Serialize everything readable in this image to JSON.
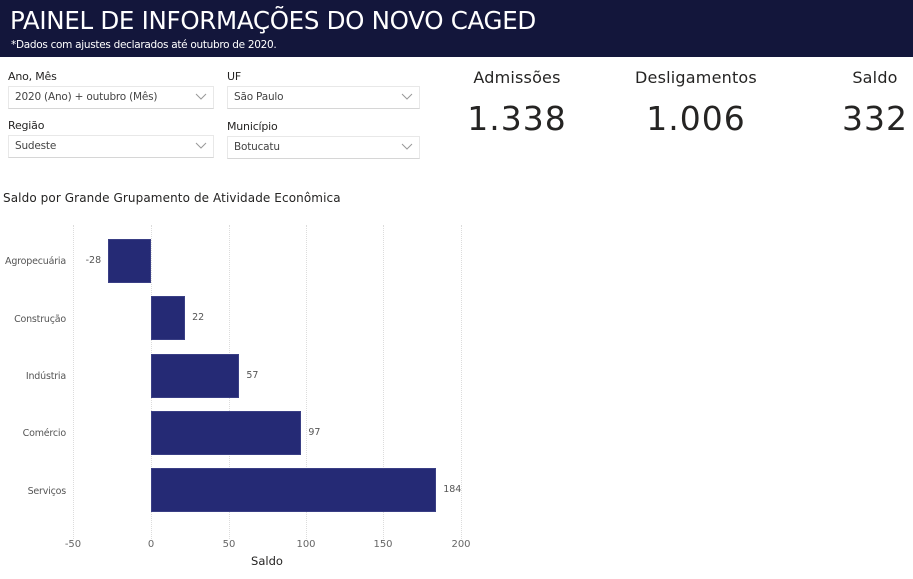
{
  "header": {
    "title": "PAINEL DE INFORMAÇÕES DO NOVO CAGED",
    "subtitle": "*Dados com ajustes declarados até outubro de 2020."
  },
  "filters": {
    "ano_mes": {
      "label": "Ano, Mês",
      "value": "2020 (Ano) + outubro (Mês)"
    },
    "uf": {
      "label": "UF",
      "value": "São Paulo"
    },
    "regiao": {
      "label": "Região",
      "value": "Sudeste"
    },
    "municipio": {
      "label": "Município",
      "value": "Botucatu"
    }
  },
  "kpis": {
    "admissoes": {
      "label": "Admissões",
      "value": "1.338"
    },
    "desligamentos": {
      "label": "Desligamentos",
      "value": "1.006"
    },
    "saldo": {
      "label": "Saldo",
      "value": "332"
    }
  },
  "colors": {
    "header_bg": "#13163b",
    "bar": "#252a75"
  },
  "chart_data": {
    "type": "bar",
    "orientation": "horizontal",
    "title": "Saldo por Grande Grupamento de Atividade Econômica",
    "categories": [
      "Agropecuária",
      "Construção",
      "Indústria",
      "Comércio",
      "Serviços"
    ],
    "values": [
      -28,
      22,
      57,
      97,
      184
    ],
    "data_labels": [
      "-28",
      "22",
      "57",
      "97",
      "184"
    ],
    "xlabel": "Saldo",
    "ylabel": "",
    "xlim": [
      -50,
      200
    ],
    "x_ticks": [
      "-50",
      "0",
      "50",
      "100",
      "150",
      "200"
    ],
    "grid": true,
    "legend": null
  }
}
